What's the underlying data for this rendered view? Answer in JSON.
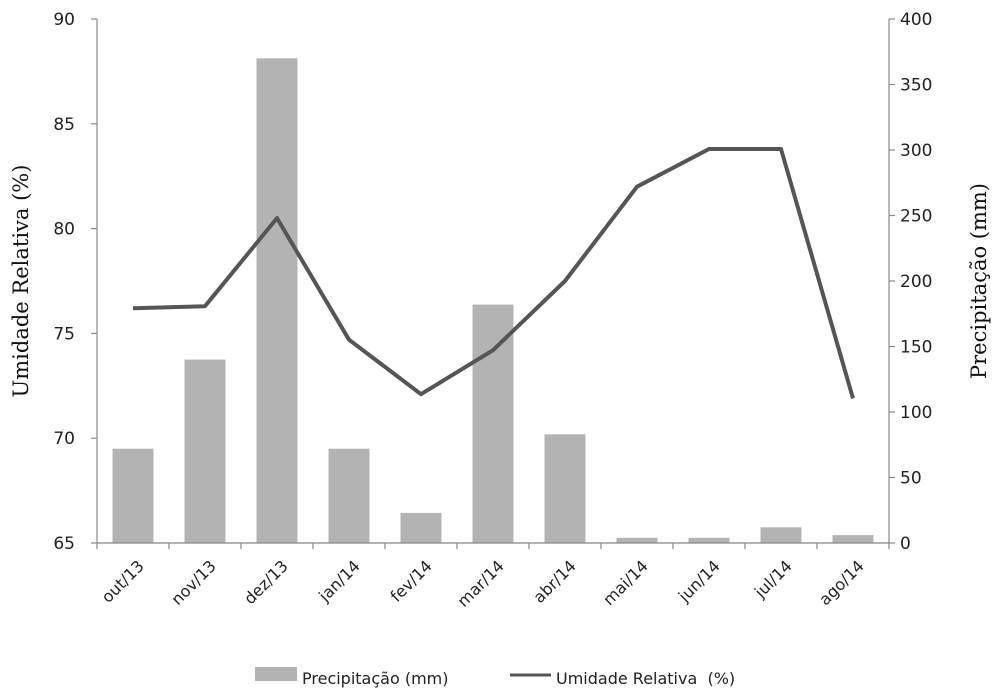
{
  "chart_data": {
    "type": "bar",
    "categories": [
      "out/13",
      "nov/13",
      "dez/13",
      "jan/14",
      "fev/14",
      "mar/14",
      "abr/14",
      "mai/14",
      "jun/14",
      "jul/14",
      "ago/14"
    ],
    "series": [
      {
        "name": "Precipitação (mm)",
        "type": "bar",
        "axis": "right",
        "color": "#b3b3b3",
        "values": [
          72,
          140,
          370,
          72,
          23,
          182,
          83,
          4,
          4,
          12,
          6
        ]
      },
      {
        "name": "Umidade Relativa  (%)",
        "type": "line",
        "axis": "left",
        "color": "#555555",
        "values": [
          76.2,
          76.3,
          80.5,
          74.7,
          72.1,
          74.2,
          77.5,
          82.0,
          83.8,
          83.8,
          71.9
        ]
      }
    ],
    "ylabel": "Umidade Relativa (%)",
    "y2label": "Precipitação (mm)",
    "ylim": [
      65,
      90
    ],
    "y2lim": [
      0,
      400
    ],
    "yticks": [
      "65",
      "70",
      "75",
      "80",
      "85",
      "90"
    ],
    "y2ticks": [
      "0",
      "50",
      "100",
      "150",
      "200",
      "250",
      "300",
      "350",
      "400"
    ],
    "grid": false,
    "legend_position": "bottom"
  }
}
